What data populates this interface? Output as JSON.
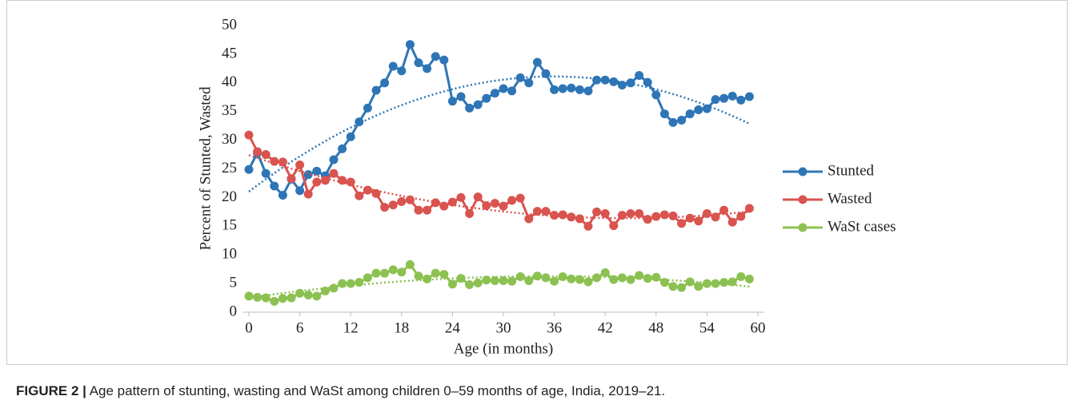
{
  "chart_data": {
    "type": "line",
    "xlabel": "Age (in months)",
    "ylabel": "Percent of Stunted, Wasted",
    "caption_label": "FIGURE 2 |",
    "caption": "Age pattern of stunting, wasting and WaSt among children 0–59 months of age, India, 2019–21.",
    "x": [
      0,
      1,
      2,
      3,
      4,
      5,
      6,
      7,
      8,
      9,
      10,
      11,
      12,
      13,
      14,
      15,
      16,
      17,
      18,
      19,
      20,
      21,
      22,
      23,
      24,
      25,
      26,
      27,
      28,
      29,
      30,
      31,
      32,
      33,
      34,
      35,
      36,
      37,
      38,
      39,
      40,
      41,
      42,
      43,
      44,
      45,
      46,
      47,
      48,
      49,
      50,
      51,
      52,
      53,
      54,
      55,
      56,
      57,
      58,
      59
    ],
    "xlim": [
      0,
      60
    ],
    "xticks": [
      0,
      6,
      12,
      18,
      24,
      30,
      36,
      42,
      48,
      54,
      60
    ],
    "ylim": [
      0,
      50
    ],
    "yticks": [
      0,
      5,
      10,
      15,
      20,
      25,
      30,
      35,
      40,
      45,
      50
    ],
    "grid": false,
    "legend": "right",
    "trendline": "polynomial",
    "trendline_order": 2,
    "series": [
      {
        "name": "Stunted",
        "color": "#2e75b6",
        "values": [
          24.9,
          27.8,
          24.2,
          22.0,
          20.4,
          23.2,
          21.2,
          24.0,
          24.6,
          23.8,
          26.6,
          28.5,
          30.6,
          33.2,
          35.6,
          38.7,
          40.0,
          42.9,
          42.1,
          46.7,
          43.5,
          42.5,
          44.6,
          44.0,
          36.8,
          37.6,
          35.6,
          36.2,
          37.3,
          38.2,
          39.0,
          38.6,
          40.9,
          40.0,
          43.6,
          41.6,
          38.8,
          39.0,
          39.1,
          38.8,
          38.6,
          40.5,
          40.5,
          40.2,
          39.6,
          40.0,
          41.3,
          40.1,
          37.9,
          34.6,
          33.1,
          33.5,
          34.6,
          35.3,
          35.5,
          37.1,
          37.3,
          37.7,
          37.0,
          37.6
        ]
      },
      {
        "name": "Wasted",
        "color": "#d9534f",
        "values": [
          30.9,
          28.0,
          27.5,
          26.3,
          26.2,
          23.3,
          25.7,
          20.6,
          22.7,
          23.0,
          24.2,
          23.0,
          22.7,
          20.3,
          21.3,
          20.7,
          18.3,
          18.7,
          19.3,
          19.6,
          17.8,
          17.8,
          19.1,
          18.5,
          19.2,
          20.0,
          17.2,
          20.1,
          18.6,
          19.0,
          18.5,
          19.5,
          19.9,
          16.3,
          17.6,
          17.6,
          16.9,
          17.0,
          16.6,
          16.3,
          15.0,
          17.5,
          17.2,
          15.1,
          16.9,
          17.2,
          17.2,
          16.2,
          16.7,
          17.0,
          16.8,
          15.5,
          16.4,
          15.9,
          17.2,
          16.6,
          17.8,
          15.7,
          16.7,
          18.1
        ]
      },
      {
        "name": "WaSt cases",
        "color": "#8cc152",
        "values": [
          2.8,
          2.6,
          2.5,
          1.9,
          2.4,
          2.5,
          3.3,
          3.0,
          2.8,
          3.7,
          4.2,
          5.0,
          5.0,
          5.2,
          6.0,
          6.8,
          6.8,
          7.4,
          7.0,
          8.3,
          6.3,
          5.8,
          6.8,
          6.6,
          4.9,
          5.9,
          4.8,
          5.1,
          5.6,
          5.5,
          5.5,
          5.4,
          6.2,
          5.5,
          6.3,
          6.0,
          5.4,
          6.2,
          5.8,
          5.7,
          5.3,
          6.0,
          6.9,
          5.7,
          6.0,
          5.7,
          6.4,
          5.9,
          6.1,
          5.2,
          4.5,
          4.3,
          5.3,
          4.5,
          5.0,
          5.0,
          5.2,
          5.3,
          6.2,
          5.8
        ]
      }
    ]
  }
}
